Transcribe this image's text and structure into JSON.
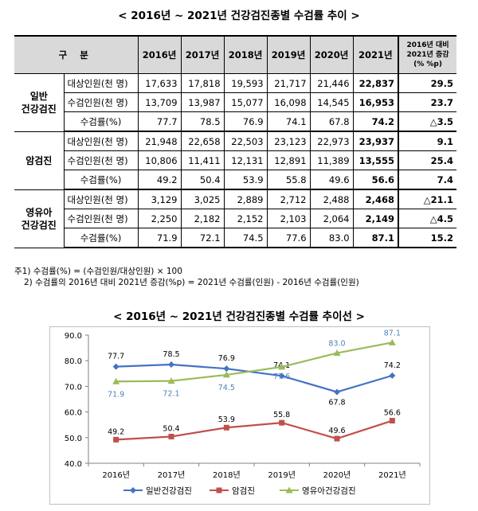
{
  "table_title": "< 2016년 ~ 2021년 건강검진종별 수검률 추이 >",
  "table": {
    "header_label": "구 분",
    "years": [
      "2016년",
      "2017년",
      "2018년",
      "2019년",
      "2020년",
      "2021년"
    ],
    "change_header": [
      "2016년 대비",
      "2021년 증감",
      "(% %p)"
    ],
    "groups": [
      {
        "name": [
          "일반",
          "건강검진"
        ],
        "rows": [
          {
            "metric": "대상인원(천 명)",
            "values": [
              "17,633",
              "17,818",
              "19,593",
              "21,717",
              "21,446",
              "22,837"
            ],
            "change": "29.5"
          },
          {
            "metric": "수검인원(천 명)",
            "values": [
              "13,709",
              "13,987",
              "15,077",
              "16,098",
              "14,545",
              "16,953"
            ],
            "change": "23.7"
          },
          {
            "metric": "수검률(%)",
            "values": [
              "77.7",
              "78.5",
              "76.9",
              "74.1",
              "67.8",
              "74.2"
            ],
            "change": "△3.5"
          }
        ]
      },
      {
        "name": [
          "암검진"
        ],
        "rows": [
          {
            "metric": "대상인원(천 명)",
            "values": [
              "21,948",
              "22,658",
              "22,503",
              "23,123",
              "22,973",
              "23,937"
            ],
            "change": "9.1"
          },
          {
            "metric": "수검인원(천 명)",
            "values": [
              "10,806",
              "11,411",
              "12,131",
              "12,891",
              "11,389",
              "13,555"
            ],
            "change": "25.4"
          },
          {
            "metric": "수검률(%)",
            "values": [
              "49.2",
              "50.4",
              "53.9",
              "55.8",
              "49.6",
              "56.6"
            ],
            "change": "7.4"
          }
        ]
      },
      {
        "name": [
          "영유아",
          "건강검진"
        ],
        "rows": [
          {
            "metric": "대상인원(천 명)",
            "values": [
              "3,129",
              "3,025",
              "2,889",
              "2,712",
              "2,488",
              "2,468"
            ],
            "change": "△21.1"
          },
          {
            "metric": "수검인원(천 명)",
            "values": [
              "2,250",
              "2,182",
              "2,152",
              "2,103",
              "2,064",
              "2,149"
            ],
            "change": "△4.5"
          },
          {
            "metric": "수검률(%)",
            "values": [
              "71.9",
              "72.1",
              "74.5",
              "77.6",
              "83.0",
              "87.1"
            ],
            "change": "15.2"
          }
        ]
      }
    ]
  },
  "notes": [
    "주1) 수검률(%) = (수검인원/대상인원) × 100",
    "2) 수검률의 2016년 대비 2021년 증감(%p) = 2021년 수검률(인원) - 2016년 수검률(인원)"
  ],
  "chart_title": "< 2016년 ~ 2021년 건강검진종별 수검률 추이선 >",
  "chart_data": {
    "type": "line",
    "categories": [
      "2016년",
      "2017년",
      "2018년",
      "2019년",
      "2020년",
      "2021년"
    ],
    "ylim": [
      40.0,
      90.0
    ],
    "yticks": [
      "40.0",
      "50.0",
      "60.0",
      "70.0",
      "80.0",
      "90.0"
    ],
    "grid": false,
    "legend_position": "bottom",
    "series": [
      {
        "name": "일반건강검진",
        "values": [
          77.7,
          78.5,
          76.9,
          74.1,
          67.8,
          74.2
        ],
        "labels": [
          "77.7",
          "78.5",
          "76.9",
          "74.1",
          "67.8",
          "74.2"
        ],
        "color": "#4472c4",
        "marker": "diamond"
      },
      {
        "name": "암검진",
        "values": [
          49.2,
          50.4,
          53.9,
          55.8,
          49.6,
          56.6
        ],
        "labels": [
          "49.2",
          "50.4",
          "53.9",
          "55.8",
          "49.6",
          "56.6"
        ],
        "color": "#c0504d",
        "marker": "square"
      },
      {
        "name": "영유아건강검진",
        "values": [
          71.9,
          72.1,
          74.5,
          77.6,
          83.0,
          87.1
        ],
        "labels": [
          "71.9",
          "72.1",
          "74.5",
          "77.6",
          "83.0",
          "87.1"
        ],
        "color": "#9bbb59",
        "marker": "triangle"
      }
    ]
  }
}
